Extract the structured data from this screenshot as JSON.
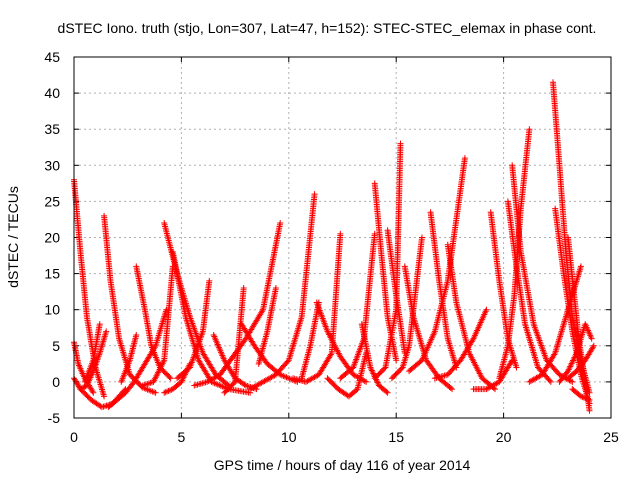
{
  "chart_data": {
    "type": "scatter",
    "title": "dSTEC Iono. truth (stjo, Lon=307, Lat=47, h=152): STEC-STEC_elemax in phase cont.",
    "xlabel": "GPS time / hours of day 116 of year 2014",
    "ylabel": "dSTEC  / TECUs",
    "xlim": [
      0,
      25
    ],
    "ylim": [
      -5,
      45
    ],
    "x_ticks": [
      "0",
      "5",
      "10",
      "15",
      "20",
      "25"
    ],
    "y_ticks": [
      "-5",
      "0",
      "5",
      "10",
      "15",
      "20",
      "25",
      "30",
      "35",
      "40",
      "45"
    ],
    "grid": true,
    "marker": "+",
    "color": "#ff0000",
    "series": [
      {
        "x": [
          0.0,
          0.3,
          0.6,
          1.0,
          1.4
        ],
        "y": [
          28.0,
          18.0,
          9.0,
          2.0,
          -2.0
        ]
      },
      {
        "x": [
          0.0,
          0.2,
          0.5,
          0.9
        ],
        "y": [
          5.5,
          2.5,
          0.5,
          -1.5
        ]
      },
      {
        "x": [
          0.0,
          0.3,
          0.6,
          0.9,
          1.2,
          1.5
        ],
        "y": [
          0.5,
          -1.0,
          -0.5,
          1.5,
          4.0,
          7.0
        ]
      },
      {
        "x": [
          0.3,
          0.8,
          1.3,
          1.8,
          2.4
        ],
        "y": [
          -1.0,
          -2.5,
          -3.5,
          -3.0,
          -1.0
        ]
      },
      {
        "x": [
          0.5,
          0.9,
          1.2
        ],
        "y": [
          0.0,
          3.0,
          8.0
        ]
      },
      {
        "x": [
          1.4,
          1.7,
          2.1,
          2.6,
          3.2,
          3.8
        ],
        "y": [
          23.0,
          14.0,
          6.0,
          1.0,
          -0.8,
          -1.5
        ]
      },
      {
        "x": [
          1.6,
          2.0,
          2.4,
          2.8,
          3.2,
          3.8,
          4.3
        ],
        "y": [
          -3.5,
          -2.5,
          -1.5,
          0.0,
          2.0,
          5.0,
          10.0
        ]
      },
      {
        "x": [
          2.2,
          2.6,
          2.9
        ],
        "y": [
          0.0,
          3.0,
          6.5
        ]
      },
      {
        "x": [
          2.9,
          3.3,
          3.6,
          4.0,
          4.5
        ],
        "y": [
          16.0,
          10.0,
          5.0,
          2.0,
          0.5
        ]
      },
      {
        "x": [
          3.2,
          3.7,
          4.2,
          4.6
        ],
        "y": [
          -0.5,
          0.0,
          3.0,
          16.0
        ]
      },
      {
        "x": [
          4.2,
          4.8,
          5.4,
          6.0,
          6.6,
          7.2
        ],
        "y": [
          22.0,
          15.0,
          9.0,
          4.0,
          1.0,
          -0.5
        ]
      },
      {
        "x": [
          4.2,
          4.6,
          5.0,
          5.4
        ],
        "y": [
          -1.5,
          -1.0,
          0.0,
          2.5
        ]
      },
      {
        "x": [
          4.6,
          5.2,
          5.8,
          6.4,
          7.2,
          8.2
        ],
        "y": [
          18.0,
          9.0,
          3.0,
          0.0,
          -1.0,
          -1.5
        ]
      },
      {
        "x": [
          4.8,
          5.4,
          6.0,
          6.3
        ],
        "y": [
          0.5,
          2.0,
          7.0,
          14.0
        ]
      },
      {
        "x": [
          5.6,
          6.2,
          6.8,
          7.4,
          8.0,
          8.8,
          9.6
        ],
        "y": [
          -0.5,
          0.0,
          1.0,
          3.5,
          6.0,
          10.0,
          22.0
        ]
      },
      {
        "x": [
          6.5,
          7.0,
          7.5,
          8.0,
          8.5
        ],
        "y": [
          6.5,
          3.0,
          0.5,
          -0.5,
          -1.0
        ]
      },
      {
        "x": [
          7.0,
          7.5,
          7.9
        ],
        "y": [
          -1.5,
          0.0,
          13.0
        ]
      },
      {
        "x": [
          7.8,
          8.4,
          9.0,
          9.6,
          10.4
        ],
        "y": [
          8.0,
          5.0,
          2.5,
          1.0,
          0.0
        ]
      },
      {
        "x": [
          8.2,
          8.8,
          9.4,
          10.0,
          10.6,
          11.2
        ],
        "y": [
          -1.0,
          0.0,
          1.0,
          3.0,
          9.0,
          26.0
        ]
      },
      {
        "x": [
          8.6,
          9.0,
          9.4
        ],
        "y": [
          2.5,
          7.0,
          13.0
        ]
      },
      {
        "x": [
          10.2,
          10.8,
          11.4,
          12.0,
          12.4
        ],
        "y": [
          0.5,
          0.0,
          1.0,
          4.0,
          20.5
        ]
      },
      {
        "x": [
          10.6,
          11.0,
          11.4
        ],
        "y": [
          0.5,
          5.0,
          11.0
        ]
      },
      {
        "x": [
          11.3,
          11.8,
          12.4,
          13.0,
          13.6
        ],
        "y": [
          11.0,
          7.0,
          3.5,
          1.0,
          0.0
        ]
      },
      {
        "x": [
          11.8,
          12.3,
          12.8,
          13.2,
          13.6
        ],
        "y": [
          0.5,
          -1.0,
          -2.0,
          -1.0,
          4.0
        ]
      },
      {
        "x": [
          12.4,
          13.0,
          13.5,
          14.0
        ],
        "y": [
          0.5,
          2.0,
          6.0,
          20.5
        ]
      },
      {
        "x": [
          13.4,
          13.8,
          14.2,
          14.6
        ],
        "y": [
          8.0,
          2.0,
          -0.5,
          -1.5
        ]
      },
      {
        "x": [
          14.0,
          14.3,
          14.6,
          15.0
        ],
        "y": [
          27.5,
          18.0,
          9.0,
          3.0
        ]
      },
      {
        "x": [
          14.0,
          14.5,
          15.0,
          15.2
        ],
        "y": [
          0.5,
          2.0,
          10.0,
          33.0
        ]
      },
      {
        "x": [
          14.6,
          15.0,
          15.4
        ],
        "y": [
          21.0,
          12.0,
          4.0
        ]
      },
      {
        "x": [
          14.8,
          15.3,
          15.6,
          16.2
        ],
        "y": [
          0.5,
          2.0,
          5.0,
          20.0
        ]
      },
      {
        "x": [
          15.4,
          15.8,
          16.4,
          17.0,
          17.6
        ],
        "y": [
          16.0,
          9.0,
          3.0,
          0.5,
          -1.0
        ]
      },
      {
        "x": [
          15.6,
          16.2,
          16.8,
          17.4,
          18.2
        ],
        "y": [
          1.5,
          3.0,
          7.0,
          14.0,
          31.0
        ]
      },
      {
        "x": [
          16.6,
          17.0,
          17.4,
          17.8
        ],
        "y": [
          23.5,
          14.0,
          6.0,
          2.0
        ]
      },
      {
        "x": [
          16.8,
          17.4,
          18.0,
          18.6,
          19.2
        ],
        "y": [
          0.5,
          1.0,
          3.0,
          6.0,
          10.0
        ]
      },
      {
        "x": [
          17.4,
          17.8,
          18.4,
          19.0,
          19.6
        ],
        "y": [
          19.0,
          11.0,
          4.0,
          0.5,
          -1.0
        ]
      },
      {
        "x": [
          18.6,
          19.2,
          19.8,
          20.4
        ],
        "y": [
          -1.0,
          -1.0,
          0.0,
          3.0
        ]
      },
      {
        "x": [
          19.4,
          19.8,
          20.2,
          20.6
        ],
        "y": [
          23.5,
          14.0,
          6.0,
          2.0
        ]
      },
      {
        "x": [
          19.8,
          20.2,
          20.5,
          20.8,
          21.2
        ],
        "y": [
          0.5,
          5.0,
          12.0,
          24.0,
          35.0
        ]
      },
      {
        "x": [
          20.2,
          20.6,
          21.0,
          21.6,
          22.2
        ],
        "y": [
          25.0,
          16.0,
          8.0,
          2.0,
          0.0
        ]
      },
      {
        "x": [
          20.4,
          20.8,
          21.4,
          22.0,
          22.6,
          23.2
        ],
        "y": [
          30.0,
          18.0,
          8.0,
          3.0,
          1.0,
          0.0
        ]
      },
      {
        "x": [
          21.2,
          21.8,
          22.4,
          23.0,
          23.6
        ],
        "y": [
          0.0,
          1.0,
          4.0,
          10.0,
          16.0
        ]
      },
      {
        "x": [
          22.3,
          22.6,
          22.9,
          23.2,
          23.6,
          24.0
        ],
        "y": [
          41.5,
          30.0,
          18.0,
          9.0,
          3.0,
          -1.5
        ]
      },
      {
        "x": [
          22.4,
          22.8,
          23.2,
          23.6,
          24.0
        ],
        "y": [
          24.0,
          15.0,
          7.0,
          1.0,
          -3.0
        ]
      },
      {
        "x": [
          22.6,
          23.0,
          23.4,
          23.8,
          24.1
        ],
        "y": [
          0.0,
          1.5,
          4.0,
          8.0,
          6.0
        ]
      },
      {
        "x": [
          23.0,
          23.5,
          24.0
        ],
        "y": [
          20.0,
          6.0,
          -4.0
        ]
      },
      {
        "x": [
          23.0,
          23.4,
          23.8,
          24.2
        ],
        "y": [
          0.5,
          1.5,
          3.0,
          5.0
        ]
      },
      {
        "x": [
          23.2,
          23.6,
          24.0
        ],
        "y": [
          -1.0,
          -2.0,
          -2.5
        ]
      }
    ]
  }
}
